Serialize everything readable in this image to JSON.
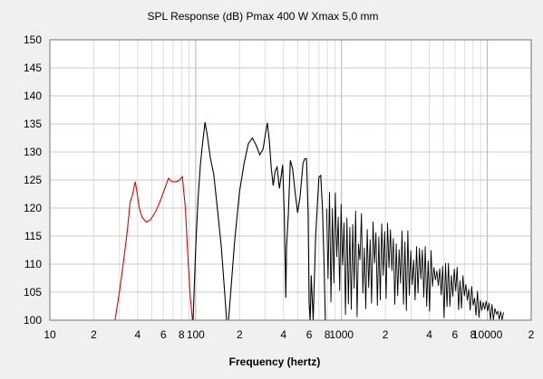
{
  "chart_data": {
    "type": "line",
    "title": "SPL Response (dB)   Pmax 400 W   Xmax 5,0 mm",
    "xlabel": "Frequency (hertz)",
    "ylabel": "",
    "x_scale": "log",
    "xlim": [
      10,
      20000
    ],
    "ylim": [
      100,
      150
    ],
    "grid": true,
    "y_ticks": [
      "100",
      "105",
      "110",
      "115",
      "120",
      "125",
      "130",
      "135",
      "140",
      "145",
      "150"
    ],
    "x_ticks": [
      {
        "value": 10,
        "label": "10"
      },
      {
        "value": 20,
        "label": "2"
      },
      {
        "value": 40,
        "label": "4"
      },
      {
        "value": 60,
        "label": "6"
      },
      {
        "value": 80,
        "label": "8"
      },
      {
        "value": 100,
        "label": "100"
      },
      {
        "value": 200,
        "label": "2"
      },
      {
        "value": 400,
        "label": "4"
      },
      {
        "value": 600,
        "label": "6"
      },
      {
        "value": 800,
        "label": "8"
      },
      {
        "value": 1000,
        "label": "1000"
      },
      {
        "value": 2000,
        "label": "2"
      },
      {
        "value": 4000,
        "label": "4"
      },
      {
        "value": 6000,
        "label": "6"
      },
      {
        "value": 8000,
        "label": "8"
      },
      {
        "value": 10000,
        "label": "10000"
      },
      {
        "value": 20000,
        "label": "2"
      }
    ],
    "series": [
      {
        "color": "#e00000",
        "points": [
          [
            28,
            100
          ],
          [
            30,
            105
          ],
          [
            32,
            110.5
          ],
          [
            34,
            116
          ],
          [
            35.5,
            121
          ],
          [
            37,
            122.5
          ],
          [
            38.5,
            124.7
          ],
          [
            39.5,
            123
          ],
          [
            41,
            120
          ],
          [
            43,
            118.3
          ],
          [
            46,
            117.5
          ],
          [
            49,
            117.9
          ],
          [
            53,
            119.3
          ],
          [
            57,
            121.2
          ],
          [
            62,
            123.8
          ],
          [
            65,
            125.3
          ],
          [
            69,
            124.7
          ],
          [
            73,
            124.7
          ],
          [
            77,
            124.9
          ],
          [
            81,
            125.6
          ],
          [
            85,
            120
          ],
          [
            89,
            110
          ],
          [
            92,
            104
          ],
          [
            95,
            100
          ]
        ]
      },
      {
        "color": "#000000",
        "points": [
          [
            96,
            100
          ],
          [
            100,
            113
          ],
          [
            104,
            122
          ],
          [
            108,
            128
          ],
          [
            112,
            132
          ],
          [
            116,
            135.3
          ],
          [
            120,
            133
          ],
          [
            126,
            129
          ],
          [
            133,
            126
          ],
          [
            142,
            119
          ],
          [
            150,
            113
          ],
          [
            158,
            105
          ],
          [
            163,
            100
          ],
          [
            168,
            100
          ],
          [
            175,
            106
          ],
          [
            185,
            114
          ],
          [
            200,
            123
          ],
          [
            215,
            128
          ],
          [
            230,
            131.5
          ],
          [
            245,
            132.5
          ],
          [
            262,
            131
          ],
          [
            275,
            129.5
          ],
          [
            290,
            130.5
          ],
          [
            300,
            133
          ],
          [
            310,
            135.2
          ],
          [
            320,
            132
          ],
          [
            330,
            127
          ],
          [
            340,
            124
          ],
          [
            350,
            126.5
          ],
          [
            362,
            127.3
          ],
          [
            375,
            123.5
          ],
          [
            385,
            125.5
          ],
          [
            395,
            127.7
          ],
          [
            405,
            119
          ],
          [
            415,
            104
          ],
          [
            420,
            113
          ],
          [
            432,
            119
          ],
          [
            446,
            128.5
          ],
          [
            462,
            127
          ],
          [
            480,
            123
          ],
          [
            500,
            119.2
          ],
          [
            520,
            122
          ],
          [
            545,
            128
          ],
          [
            560,
            128.8
          ],
          [
            575,
            128.8
          ],
          [
            590,
            119
          ],
          [
            600,
            103
          ],
          [
            610,
            100
          ],
          [
            620,
            108
          ],
          [
            640,
            100
          ],
          [
            665,
            115
          ],
          [
            700,
            125.5
          ],
          [
            720,
            125.8
          ],
          [
            740,
            120
          ],
          [
            760,
            110
          ],
          [
            775,
            100
          ]
        ]
      }
    ],
    "black_tail": {
      "f_start": 790,
      "f_end": 13000,
      "envelope_top": [
        [
          790,
          124
        ],
        [
          1000,
          123
        ],
        [
          1500,
          119
        ],
        [
          2000,
          118
        ],
        [
          3000,
          116
        ],
        [
          4000,
          114
        ],
        [
          6000,
          110
        ],
        [
          8000,
          106
        ],
        [
          10000,
          103.5
        ],
        [
          13000,
          101.5
        ]
      ],
      "envelope_bottom": [
        [
          790,
          100
        ],
        [
          1500,
          100
        ],
        [
          3000,
          101
        ],
        [
          6000,
          100
        ],
        [
          13000,
          100
        ]
      ],
      "seed": 7
    }
  }
}
